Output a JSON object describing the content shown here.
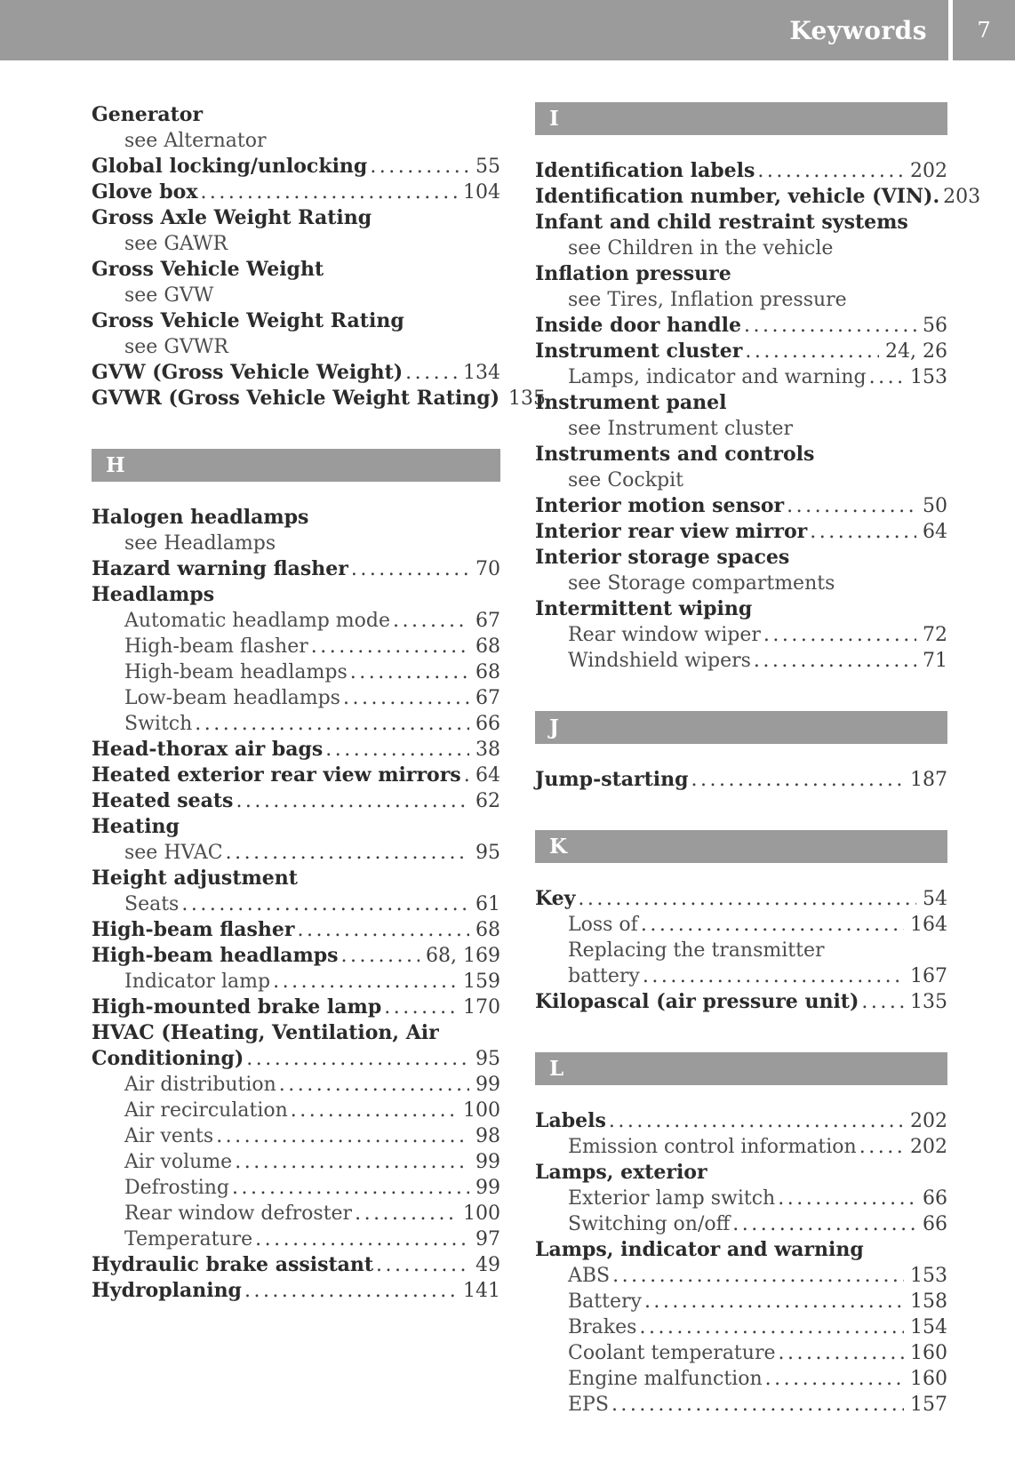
{
  "header": {
    "title": "Keywords",
    "page_number": "7"
  },
  "colors": {
    "bar_gray": "#9b9b9b",
    "text_dark": "#2b2b2b",
    "text_muted": "#4c4c4c",
    "bar_text": "#ffffff"
  },
  "index": {
    "left_column": [
      {
        "type": "entry",
        "style": "main",
        "label": "Generator",
        "dots": false
      },
      {
        "type": "entry",
        "style": "see",
        "label": "see Alternator",
        "dots": false
      },
      {
        "type": "entry",
        "style": "main",
        "label": "Global locking/unlocking",
        "dots": true,
        "page": "55"
      },
      {
        "type": "entry",
        "style": "main",
        "label": "Glove box",
        "dots": true,
        "page": "104"
      },
      {
        "type": "entry",
        "style": "main",
        "label": "Gross Axle Weight Rating",
        "dots": false
      },
      {
        "type": "entry",
        "style": "see",
        "label": "see GAWR",
        "dots": false
      },
      {
        "type": "entry",
        "style": "main",
        "label": "Gross Vehicle Weight",
        "dots": false
      },
      {
        "type": "entry",
        "style": "see",
        "label": "see GVW",
        "dots": false
      },
      {
        "type": "entry",
        "style": "main",
        "label": "Gross Vehicle Weight Rating",
        "dots": false
      },
      {
        "type": "entry",
        "style": "see",
        "label": "see GVWR",
        "dots": false
      },
      {
        "type": "entry",
        "style": "main",
        "label": "GVW (Gross Vehicle Weight)",
        "dots": true,
        "page": "134"
      },
      {
        "type": "entry",
        "style": "main",
        "label": "GVWR (Gross Vehicle Weight Rating)",
        "dots": true,
        "page": "135"
      },
      {
        "type": "section",
        "label": "H"
      },
      {
        "type": "entry",
        "style": "main",
        "label": "Halogen headlamps",
        "dots": false
      },
      {
        "type": "entry",
        "style": "see",
        "label": "see Headlamps",
        "dots": false
      },
      {
        "type": "entry",
        "style": "main",
        "label": "Hazard warning flasher",
        "dots": true,
        "page": "70"
      },
      {
        "type": "entry",
        "style": "main",
        "label": "Headlamps",
        "dots": false
      },
      {
        "type": "entry",
        "style": "sub",
        "label": "Automatic headlamp mode",
        "dots": true,
        "page": "67"
      },
      {
        "type": "entry",
        "style": "sub",
        "label": "High-beam flasher",
        "dots": true,
        "page": "68"
      },
      {
        "type": "entry",
        "style": "sub",
        "label": "High-beam headlamps",
        "dots": true,
        "page": "68"
      },
      {
        "type": "entry",
        "style": "sub",
        "label": "Low-beam headlamps",
        "dots": true,
        "page": "67"
      },
      {
        "type": "entry",
        "style": "sub",
        "label": "Switch",
        "dots": true,
        "page": "66"
      },
      {
        "type": "entry",
        "style": "main",
        "label": "Head-thorax air bags",
        "dots": true,
        "page": "38"
      },
      {
        "type": "entry",
        "style": "main",
        "label": "Heated exterior rear view mirrors",
        "dots": true,
        "page": "64"
      },
      {
        "type": "entry",
        "style": "main",
        "label": "Heated seats",
        "dots": true,
        "page": "62"
      },
      {
        "type": "entry",
        "style": "main",
        "label": "Heating",
        "dots": false
      },
      {
        "type": "entry",
        "style": "see",
        "label": "see HVAC",
        "dots": true,
        "page": "95"
      },
      {
        "type": "entry",
        "style": "main",
        "label": "Height adjustment",
        "dots": false
      },
      {
        "type": "entry",
        "style": "sub",
        "label": "Seats",
        "dots": true,
        "page": "61"
      },
      {
        "type": "entry",
        "style": "main",
        "label": "High-beam flasher",
        "dots": true,
        "page": "68"
      },
      {
        "type": "entry",
        "style": "main",
        "label": "High-beam headlamps",
        "dots": true,
        "page": "68, 169"
      },
      {
        "type": "entry",
        "style": "sub",
        "label": "Indicator lamp",
        "dots": true,
        "page": "159"
      },
      {
        "type": "entry",
        "style": "main",
        "label": "High-mounted brake lamp",
        "dots": true,
        "page": "170"
      },
      {
        "type": "entry",
        "style": "main",
        "label": "HVAC (Heating, Ventilation, Air",
        "dots": false
      },
      {
        "type": "entry",
        "style": "cont",
        "label": "Conditioning)",
        "dots": true,
        "page": "95"
      },
      {
        "type": "entry",
        "style": "sub",
        "label": "Air distribution",
        "dots": true,
        "page": "99"
      },
      {
        "type": "entry",
        "style": "sub",
        "label": "Air recirculation",
        "dots": true,
        "page": "100"
      },
      {
        "type": "entry",
        "style": "sub",
        "label": "Air vents",
        "dots": true,
        "page": "98"
      },
      {
        "type": "entry",
        "style": "sub",
        "label": "Air volume",
        "dots": true,
        "page": "99"
      },
      {
        "type": "entry",
        "style": "sub",
        "label": "Defrosting",
        "dots": true,
        "page": "99"
      },
      {
        "type": "entry",
        "style": "sub",
        "label": "Rear window defroster",
        "dots": true,
        "page": "100"
      },
      {
        "type": "entry",
        "style": "sub",
        "label": "Temperature",
        "dots": true,
        "page": "97"
      },
      {
        "type": "entry",
        "style": "main",
        "label": "Hydraulic brake assistant",
        "dots": true,
        "page": "49"
      },
      {
        "type": "entry",
        "style": "main",
        "label": "Hydroplaning",
        "dots": true,
        "page": "141"
      }
    ],
    "right_column": [
      {
        "type": "section",
        "label": "I"
      },
      {
        "type": "entry",
        "style": "main",
        "label": "Identification labels",
        "dots": true,
        "page": "202"
      },
      {
        "type": "entry",
        "style": "main",
        "label": "Identification number, vehicle (VIN).",
        "dots": false,
        "page": "203"
      },
      {
        "type": "entry",
        "style": "main",
        "label": "Infant and child restraint systems",
        "dots": false
      },
      {
        "type": "entry",
        "style": "see",
        "label": "see Children in the vehicle",
        "dots": false
      },
      {
        "type": "entry",
        "style": "main",
        "label": "Inflation pressure",
        "dots": false
      },
      {
        "type": "entry",
        "style": "see",
        "label": "see Tires, Inflation pressure",
        "dots": false
      },
      {
        "type": "entry",
        "style": "main",
        "label": "Inside door handle",
        "dots": true,
        "page": "56"
      },
      {
        "type": "entry",
        "style": "main",
        "label": "Instrument cluster",
        "dots": true,
        "page": "24, 26"
      },
      {
        "type": "entry",
        "style": "sub",
        "label": "Lamps, indicator and warning",
        "dots": true,
        "page": "153"
      },
      {
        "type": "entry",
        "style": "main",
        "label": "Instrument panel",
        "dots": false
      },
      {
        "type": "entry",
        "style": "see",
        "label": "see Instrument cluster",
        "dots": false
      },
      {
        "type": "entry",
        "style": "main",
        "label": "Instruments and controls",
        "dots": false
      },
      {
        "type": "entry",
        "style": "see",
        "label": "see Cockpit",
        "dots": false
      },
      {
        "type": "entry",
        "style": "main",
        "label": "Interior motion sensor",
        "dots": true,
        "page": "50"
      },
      {
        "type": "entry",
        "style": "main",
        "label": "Interior rear view mirror",
        "dots": true,
        "page": "64"
      },
      {
        "type": "entry",
        "style": "main",
        "label": "Interior storage spaces",
        "dots": false
      },
      {
        "type": "entry",
        "style": "see",
        "label": "see Storage compartments",
        "dots": false
      },
      {
        "type": "entry",
        "style": "main",
        "label": "Intermittent wiping",
        "dots": false
      },
      {
        "type": "entry",
        "style": "sub",
        "label": "Rear window wiper",
        "dots": true,
        "page": "72"
      },
      {
        "type": "entry",
        "style": "sub",
        "label": "Windshield wipers",
        "dots": true,
        "page": "71"
      },
      {
        "type": "section",
        "label": "J"
      },
      {
        "type": "entry",
        "style": "main",
        "label": "Jump-starting",
        "dots": true,
        "page": "187"
      },
      {
        "type": "section",
        "label": "K"
      },
      {
        "type": "entry",
        "style": "main",
        "label": "Key",
        "dots": true,
        "page": "54"
      },
      {
        "type": "entry",
        "style": "sub",
        "label": "Loss of",
        "dots": true,
        "page": "164"
      },
      {
        "type": "entry",
        "style": "sub",
        "label": "Replacing the transmitter",
        "dots": false
      },
      {
        "type": "entry",
        "style": "sub",
        "label": "battery",
        "dots": true,
        "page": "167"
      },
      {
        "type": "entry",
        "style": "main",
        "label": "Kilopascal (air pressure unit)",
        "dots": true,
        "page": "135"
      },
      {
        "type": "section",
        "label": "L"
      },
      {
        "type": "entry",
        "style": "main",
        "label": "Labels",
        "dots": true,
        "page": "202"
      },
      {
        "type": "entry",
        "style": "sub",
        "label": "Emission control information",
        "dots": true,
        "page": "202"
      },
      {
        "type": "entry",
        "style": "main",
        "label": "Lamps, exterior",
        "dots": false
      },
      {
        "type": "entry",
        "style": "sub",
        "label": "Exterior lamp switch",
        "dots": true,
        "page": "66"
      },
      {
        "type": "entry",
        "style": "sub",
        "label": "Switching on/off",
        "dots": true,
        "page": "66"
      },
      {
        "type": "entry",
        "style": "main",
        "label": "Lamps, indicator and warning",
        "dots": false
      },
      {
        "type": "entry",
        "style": "sub",
        "label": "ABS",
        "dots": true,
        "page": "153"
      },
      {
        "type": "entry",
        "style": "sub",
        "label": "Battery",
        "dots": true,
        "page": "158"
      },
      {
        "type": "entry",
        "style": "sub",
        "label": "Brakes",
        "dots": true,
        "page": "154"
      },
      {
        "type": "entry",
        "style": "sub",
        "label": "Coolant temperature",
        "dots": true,
        "page": "160"
      },
      {
        "type": "entry",
        "style": "sub",
        "label": "Engine malfunction",
        "dots": true,
        "page": "160"
      },
      {
        "type": "entry",
        "style": "sub",
        "label": "EPS",
        "dots": true,
        "page": "157"
      }
    ]
  }
}
